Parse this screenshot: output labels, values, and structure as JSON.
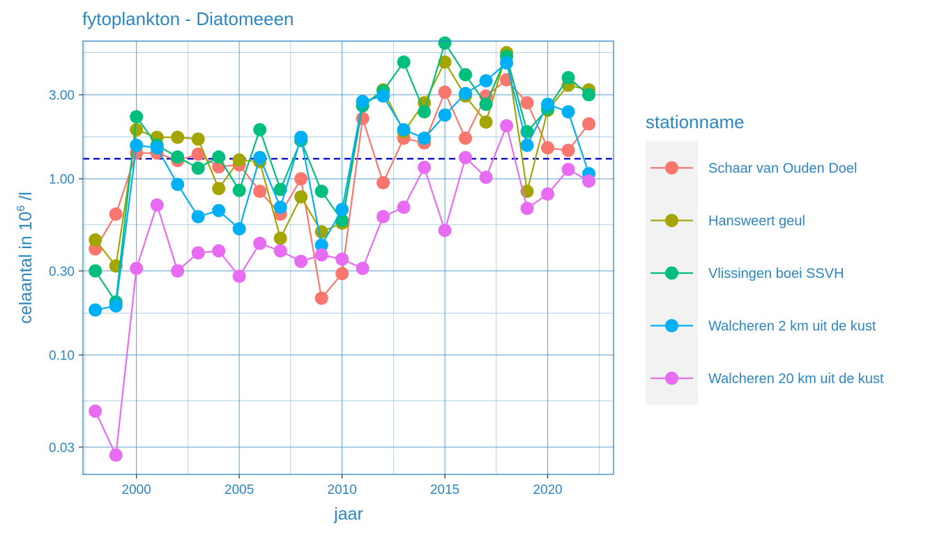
{
  "chart_data": {
    "type": "line",
    "title": "fytoplankton - Diatomeeen",
    "xlabel": "jaar",
    "ylabel_prefix": "celaantal in  10",
    "ylabel_exponent": "6",
    "ylabel_suffix": " /l",
    "y_scale": "log10",
    "xlim": [
      1997.4,
      2023.2
    ],
    "ylim": [
      0.021,
      6.05
    ],
    "x_ticks": [
      2000,
      2005,
      2010,
      2015,
      2020
    ],
    "x_tick_labels": [
      "2000",
      "2005",
      "2010",
      "2015",
      "2020"
    ],
    "y_ticks": [
      0.03,
      0.1,
      0.3,
      1,
      3
    ],
    "y_tick_labels": [
      "0.03",
      "0.10",
      "0.30",
      "1.00",
      "3.00"
    ],
    "grid": true,
    "reference_line": {
      "y": 1.3,
      "style": "dashed",
      "color": "#0000cc"
    },
    "x": [
      1998,
      1999,
      2000,
      2001,
      2002,
      2003,
      2004,
      2005,
      2006,
      2007,
      2008,
      2009,
      2010,
      2011,
      2012,
      2013,
      2014,
      2015,
      2016,
      2017,
      2018,
      2019,
      2020,
      2021,
      2022
    ],
    "legend_title": "stationname",
    "legend_position": "right",
    "series": [
      {
        "name": "Schaar van Ouden Doel",
        "color": "#F8766D",
        "values": [
          0.4,
          0.63,
          1.4,
          1.4,
          1.27,
          1.38,
          1.17,
          1.2,
          0.85,
          0.63,
          1.0,
          0.21,
          0.29,
          2.2,
          0.95,
          1.7,
          1.6,
          3.1,
          1.7,
          2.95,
          3.65,
          2.7,
          1.5,
          1.45,
          2.05
        ]
      },
      {
        "name": "Hansweert geul",
        "color": "#A3A500",
        "values": [
          0.45,
          0.32,
          1.9,
          1.72,
          1.72,
          1.68,
          0.88,
          1.28,
          1.25,
          0.46,
          0.79,
          0.5,
          0.56,
          2.6,
          3.2,
          1.85,
          2.7,
          4.6,
          2.95,
          2.1,
          5.2,
          0.85,
          2.45,
          3.4,
          3.2
        ]
      },
      {
        "name": "Vlissingen boei SSVH",
        "color": "#00BF7D",
        "values": [
          0.3,
          0.2,
          2.25,
          1.55,
          1.33,
          1.15,
          1.33,
          0.86,
          1.9,
          0.87,
          1.65,
          0.85,
          0.58,
          2.6,
          3.15,
          4.6,
          2.4,
          5.9,
          3.9,
          2.65,
          4.95,
          1.85,
          2.5,
          3.75,
          3.0
        ]
      },
      {
        "name": "Walcheren 2 km uit de kust",
        "color": "#00B0F6",
        "values": [
          0.18,
          0.19,
          1.55,
          1.5,
          0.93,
          0.61,
          0.66,
          0.52,
          1.32,
          0.69,
          1.72,
          0.42,
          0.67,
          2.75,
          2.95,
          1.9,
          1.7,
          2.3,
          3.05,
          3.6,
          4.55,
          1.55,
          2.65,
          2.4,
          1.07
        ]
      },
      {
        "name": "Walcheren 20 km uit de kust",
        "color": "#E76BF3",
        "values": [
          0.048,
          0.027,
          0.31,
          0.71,
          0.3,
          0.38,
          0.39,
          0.28,
          0.43,
          0.39,
          0.34,
          0.37,
          0.35,
          0.31,
          0.61,
          0.69,
          1.16,
          0.51,
          1.32,
          1.02,
          2.0,
          0.68,
          0.82,
          1.13,
          0.97
        ]
      }
    ]
  }
}
